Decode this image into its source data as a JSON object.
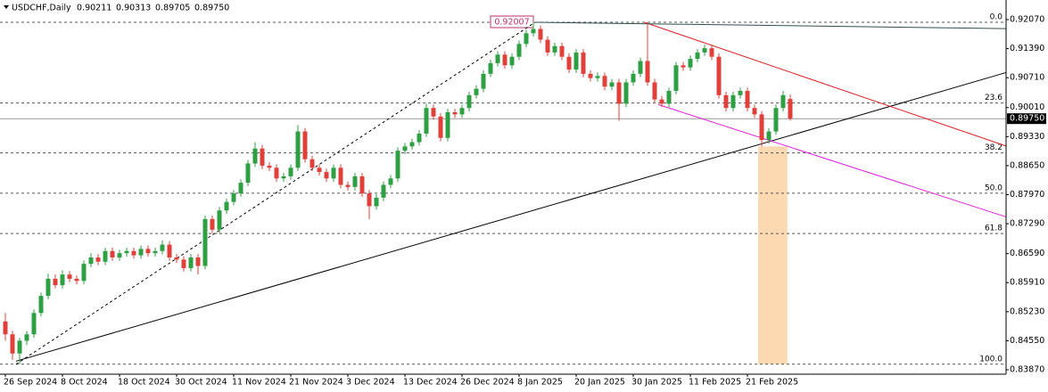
{
  "chart_data": {
    "type": "candlestick",
    "header": {
      "symbol": "USDCHF,Daily",
      "ohlc": [
        "0.90211",
        "0.90313",
        "0.89705",
        "0.89750"
      ]
    },
    "colors": {
      "up": "#2ea043",
      "down": "#e0403a"
    },
    "grid": false,
    "categories": [
      "26 Sep 2024",
      null,
      null,
      null,
      null,
      null,
      null,
      null,
      "8 Oct 2024",
      null,
      null,
      null,
      null,
      null,
      null,
      null,
      "18 Oct 2024",
      null,
      null,
      null,
      null,
      null,
      null,
      null,
      "30 Oct 2024",
      null,
      null,
      null,
      null,
      null,
      null,
      null,
      "11 Nov 2024",
      null,
      null,
      null,
      null,
      null,
      null,
      null,
      "21 Nov 2024",
      null,
      null,
      null,
      null,
      null,
      null,
      null,
      "3 Dec 2024",
      null,
      null,
      null,
      null,
      null,
      null,
      null,
      "13 Dec 2024",
      null,
      null,
      null,
      null,
      null,
      null,
      null,
      "26 Dec 2024",
      null,
      null,
      null,
      null,
      null,
      null,
      null,
      "8 Jan 2025",
      null,
      null,
      null,
      null,
      null,
      null,
      null,
      "20 Jan 2025",
      null,
      null,
      null,
      null,
      null,
      null,
      null,
      "30 Jan 2025",
      null,
      null,
      null,
      null,
      null,
      null,
      null,
      "11 Feb 2025",
      null,
      null,
      null,
      null,
      null,
      null,
      null,
      "21 Feb 2025",
      null,
      null,
      null,
      null,
      null,
      null
    ],
    "candles": [
      [
        0.85,
        0.852,
        0.8455,
        0.847
      ],
      [
        0.847,
        0.8478,
        0.841,
        0.8425
      ],
      [
        0.8425,
        0.8462,
        0.84,
        0.8455
      ],
      [
        0.8455,
        0.8478,
        0.8445,
        0.847
      ],
      [
        0.847,
        0.8528,
        0.8462,
        0.852
      ],
      [
        0.852,
        0.8568,
        0.8512,
        0.856
      ],
      [
        0.856,
        0.8612,
        0.8552,
        0.86
      ],
      [
        0.86,
        0.861,
        0.8578,
        0.8585
      ],
      [
        0.8585,
        0.862,
        0.8577,
        0.861
      ],
      [
        0.861,
        0.8618,
        0.8592,
        0.86
      ],
      [
        0.86,
        0.8608,
        0.8587,
        0.8595
      ],
      [
        0.8595,
        0.8643,
        0.8587,
        0.8635
      ],
      [
        0.8635,
        0.866,
        0.8627,
        0.865
      ],
      [
        0.865,
        0.8658,
        0.8632,
        0.864
      ],
      [
        0.864,
        0.8673,
        0.8632,
        0.8665
      ],
      [
        0.8665,
        0.8673,
        0.8642,
        0.865
      ],
      [
        0.865,
        0.8668,
        0.8642,
        0.866
      ],
      [
        0.866,
        0.8673,
        0.8652,
        0.8665
      ],
      [
        0.8665,
        0.8673,
        0.8647,
        0.8655
      ],
      [
        0.8655,
        0.8678,
        0.8647,
        0.867
      ],
      [
        0.867,
        0.8678,
        0.8652,
        0.866
      ],
      [
        0.866,
        0.8673,
        0.8652,
        0.8665
      ],
      [
        0.8665,
        0.869,
        0.8657,
        0.868
      ],
      [
        0.868,
        0.8688,
        0.8642,
        0.865
      ],
      [
        0.865,
        0.8658,
        0.8637,
        0.8645
      ],
      [
        0.8645,
        0.8653,
        0.8617,
        0.8625
      ],
      [
        0.8625,
        0.8658,
        0.8617,
        0.865
      ],
      [
        0.865,
        0.8658,
        0.861,
        0.863
      ],
      [
        0.863,
        0.8748,
        0.8622,
        0.874
      ],
      [
        0.874,
        0.8748,
        0.8707,
        0.8715
      ],
      [
        0.8715,
        0.8768,
        0.8707,
        0.876
      ],
      [
        0.876,
        0.8788,
        0.8752,
        0.878
      ],
      [
        0.878,
        0.8808,
        0.8772,
        0.88
      ],
      [
        0.88,
        0.8833,
        0.8792,
        0.8825
      ],
      [
        0.8825,
        0.8878,
        0.8817,
        0.887
      ],
      [
        0.887,
        0.892,
        0.8862,
        0.8905
      ],
      [
        0.8905,
        0.8913,
        0.8857,
        0.8865
      ],
      [
        0.8865,
        0.8873,
        0.8852,
        0.886
      ],
      [
        0.886,
        0.8868,
        0.8827,
        0.8835
      ],
      [
        0.8835,
        0.8848,
        0.8827,
        0.884
      ],
      [
        0.884,
        0.8868,
        0.8832,
        0.886
      ],
      [
        0.886,
        0.896,
        0.8852,
        0.8945
      ],
      [
        0.8945,
        0.8953,
        0.8872,
        0.888
      ],
      [
        0.888,
        0.8888,
        0.8852,
        0.886
      ],
      [
        0.886,
        0.8868,
        0.8842,
        0.885
      ],
      [
        0.885,
        0.8858,
        0.8827,
        0.8835
      ],
      [
        0.8835,
        0.8868,
        0.8827,
        0.886
      ],
      [
        0.886,
        0.8868,
        0.8812,
        0.882
      ],
      [
        0.882,
        0.8828,
        0.8807,
        0.8815
      ],
      [
        0.8815,
        0.8848,
        0.8807,
        0.884
      ],
      [
        0.884,
        0.8848,
        0.8792,
        0.88
      ],
      [
        0.88,
        0.8808,
        0.874,
        0.877
      ],
      [
        0.877,
        0.8798,
        0.8762,
        0.879
      ],
      [
        0.879,
        0.8828,
        0.8782,
        0.882
      ],
      [
        0.882,
        0.8843,
        0.8812,
        0.8835
      ],
      [
        0.8835,
        0.8908,
        0.8827,
        0.89
      ],
      [
        0.89,
        0.8918,
        0.8892,
        0.891
      ],
      [
        0.891,
        0.8928,
        0.8902,
        0.892
      ],
      [
        0.892,
        0.8948,
        0.8912,
        0.894
      ],
      [
        0.894,
        0.901,
        0.8932,
        0.9
      ],
      [
        0.9,
        0.9008,
        0.8972,
        0.898
      ],
      [
        0.898,
        0.8988,
        0.8922,
        0.893
      ],
      [
        0.893,
        0.8998,
        0.8922,
        0.899
      ],
      [
        0.899,
        0.8998,
        0.8977,
        0.8985
      ],
      [
        0.8985,
        0.9008,
        0.8977,
        0.9
      ],
      [
        0.9,
        0.9038,
        0.8992,
        0.903
      ],
      [
        0.903,
        0.9053,
        0.9022,
        0.9045
      ],
      [
        0.9045,
        0.9088,
        0.9037,
        0.908
      ],
      [
        0.908,
        0.9113,
        0.9072,
        0.9105
      ],
      [
        0.9105,
        0.9133,
        0.9097,
        0.9125
      ],
      [
        0.9125,
        0.9133,
        0.9092,
        0.91
      ],
      [
        0.91,
        0.9128,
        0.9092,
        0.912
      ],
      [
        0.912,
        0.9158,
        0.9112,
        0.915
      ],
      [
        0.915,
        0.9183,
        0.9142,
        0.9175
      ],
      [
        0.9175,
        0.92007,
        0.9167,
        0.9185
      ],
      [
        0.9185,
        0.9193,
        0.9152,
        0.916
      ],
      [
        0.916,
        0.9168,
        0.9122,
        0.913
      ],
      [
        0.913,
        0.9153,
        0.9122,
        0.9145
      ],
      [
        0.9145,
        0.9153,
        0.9112,
        0.912
      ],
      [
        0.912,
        0.9128,
        0.9082,
        0.909
      ],
      [
        0.909,
        0.9138,
        0.9082,
        0.913
      ],
      [
        0.913,
        0.9138,
        0.9072,
        0.908
      ],
      [
        0.908,
        0.9088,
        0.9062,
        0.907
      ],
      [
        0.907,
        0.9083,
        0.9062,
        0.9075
      ],
      [
        0.9075,
        0.9083,
        0.9042,
        0.905
      ],
      [
        0.905,
        0.9068,
        0.9042,
        0.906
      ],
      [
        0.906,
        0.9068,
        0.897,
        0.901
      ],
      [
        0.901,
        0.9068,
        0.9002,
        0.906
      ],
      [
        0.906,
        0.9088,
        0.9052,
        0.908
      ],
      [
        0.908,
        0.9118,
        0.9072,
        0.911
      ],
      [
        0.911,
        0.9201,
        0.9052,
        0.906
      ],
      [
        0.906,
        0.9068,
        0.9012,
        0.902
      ],
      [
        0.902,
        0.9028,
        0.9002,
        0.901
      ],
      [
        0.901,
        0.9048,
        0.9002,
        0.904
      ],
      [
        0.904,
        0.9108,
        0.9032,
        0.91
      ],
      [
        0.91,
        0.9108,
        0.9087,
        0.9095
      ],
      [
        0.9095,
        0.9123,
        0.9087,
        0.9115
      ],
      [
        0.9115,
        0.9138,
        0.9107,
        0.913
      ],
      [
        0.913,
        0.9148,
        0.9122,
        0.914
      ],
      [
        0.914,
        0.9148,
        0.9112,
        0.912
      ],
      [
        0.912,
        0.9128,
        0.9022,
        0.903
      ],
      [
        0.903,
        0.9038,
        0.8992,
        0.9
      ],
      [
        0.9,
        0.9038,
        0.8992,
        0.903
      ],
      [
        0.903,
        0.9048,
        0.9022,
        0.904
      ],
      [
        0.904,
        0.9048,
        0.8992,
        0.9
      ],
      [
        0.9,
        0.9008,
        0.8977,
        0.8985
      ],
      [
        0.8985,
        0.8993,
        0.891,
        0.8925
      ],
      [
        0.8925,
        0.8953,
        0.8917,
        0.8945
      ],
      [
        0.8945,
        0.9008,
        0.8937,
        0.9
      ],
      [
        0.9,
        0.904,
        0.8992,
        0.903
      ],
      [
        0.90211,
        0.90313,
        0.89705,
        0.8975
      ]
    ],
    "ylim": [
      0.83766,
      0.92529
    ],
    "yticks": [
      {
        "value": 0.9207,
        "label": "0.92070"
      },
      {
        "value": 0.9139,
        "label": "0.91390"
      },
      {
        "value": 0.9071,
        "label": "0.90710"
      },
      {
        "value": 0.9001,
        "label": "0.90010"
      },
      {
        "value": 0.8933,
        "label": "0.89330"
      },
      {
        "value": 0.8865,
        "label": "0.88650"
      },
      {
        "value": 0.8797,
        "label": "0.87970"
      },
      {
        "value": 0.8729,
        "label": "0.87290"
      },
      {
        "value": 0.8659,
        "label": "0.86590"
      },
      {
        "value": 0.8591,
        "label": "0.85910"
      },
      {
        "value": 0.8523,
        "label": "0.85230"
      },
      {
        "value": 0.8455,
        "label": "0.84550"
      },
      {
        "value": 0.8387,
        "label": "0.83870"
      }
    ],
    "last_price": {
      "value": 0.8975,
      "label": "0.89750"
    },
    "fib": {
      "high": 0.92007,
      "low": 0.84,
      "color": "#c0306a",
      "levels": [
        {
          "value": 0,
          "label": "0.0"
        },
        23.6,
        38.2,
        {
          "value": 50,
          "label": "50.0"
        },
        61.8,
        {
          "value": 100,
          "label": "100.0"
        }
      ]
    },
    "lines": [
      {
        "color": "#000000",
        "dashed": true,
        "points": [
          [
            1.5,
            0.84
          ],
          [
            74.25,
            0.92007
          ]
        ]
      },
      {
        "color": "#000000",
        "dashed": false,
        "points": [
          [
            1.5,
            0.8407
          ],
          [
            140.25,
            0.9083
          ]
        ]
      },
      {
        "color": "#e02020",
        "dashed": false,
        "points": [
          [
            89.5,
            0.9201
          ],
          [
            140.25,
            0.8911
          ]
        ]
      },
      {
        "color": "#e020e0",
        "dashed": false,
        "points": [
          [
            91.5,
            0.9008
          ],
          [
            140.25,
            0.8745
          ]
        ]
      },
      {
        "color": "#2f4f4f",
        "dashed": false,
        "points": [
          [
            74.25,
            0.92007
          ],
          [
            140.25,
            0.9186
          ]
        ]
      }
    ],
    "highlight": {
      "color": "#fcd9b0",
      "x": [
        105.5,
        109.6
      ],
      "y": [
        0.84,
        0.891
      ]
    }
  }
}
